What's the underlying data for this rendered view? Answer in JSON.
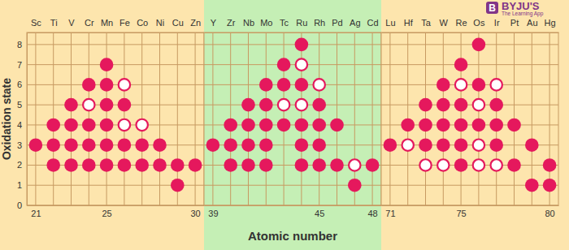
{
  "chart_data": [
    {
      "type": "scatter",
      "y_label": "Oxidation state",
      "grid": true,
      "tick_labels": true,
      "xlim": [
        20.5,
        30.5
      ],
      "xticks": [
        21,
        25,
        30
      ],
      "xticks_top": [
        {
          "value": 21,
          "label": "Sc"
        },
        {
          "value": 22,
          "label": "Ti"
        },
        {
          "value": 23,
          "label": "V"
        },
        {
          "value": 24,
          "label": "Cr"
        },
        {
          "value": 25,
          "label": "Mn"
        },
        {
          "value": 26,
          "label": "Fe"
        },
        {
          "value": 27,
          "label": "Co"
        },
        {
          "value": 28,
          "label": "Ni"
        },
        {
          "value": 29,
          "label": "Cu"
        },
        {
          "value": 30,
          "label": "Zn"
        }
      ],
      "ylim": [
        0,
        8.6
      ],
      "yticks": [
        0,
        1,
        2,
        3,
        4,
        5,
        6,
        7,
        8
      ],
      "series": [
        {
          "marker": "filled-circle",
          "color": "#e5185d",
          "x": [
            21,
            22,
            22,
            22,
            23,
            23,
            23,
            23,
            24,
            24,
            24,
            24,
            25,
            25,
            25,
            25,
            25,
            25,
            26,
            26,
            26,
            27,
            27,
            28,
            28,
            29,
            29,
            30
          ],
          "values": [
            3,
            2,
            3,
            4,
            2,
            3,
            4,
            5,
            2,
            3,
            4,
            6,
            2,
            3,
            4,
            5,
            6,
            7,
            2,
            3,
            5,
            2,
            3,
            2,
            3,
            1,
            2,
            2
          ]
        },
        {
          "marker": "open-circle",
          "color": "#e5185d",
          "x": [
            24,
            26,
            26,
            27
          ],
          "values": [
            5,
            4,
            6,
            4
          ]
        }
      ]
    },
    {
      "type": "scatter",
      "x_label": "Atomic number",
      "grid": true,
      "tick_labels": "x",
      "xlim": [
        38.5,
        48.5
      ],
      "xticks": [
        39,
        45,
        48
      ],
      "xticks_top": [
        {
          "value": 39,
          "label": "Y"
        },
        {
          "value": 40,
          "label": "Zr"
        },
        {
          "value": 41,
          "label": "Nb"
        },
        {
          "value": 42,
          "label": "Mo"
        },
        {
          "value": 43,
          "label": "Tc"
        },
        {
          "value": 44,
          "label": "Ru"
        },
        {
          "value": 45,
          "label": "Rh"
        },
        {
          "value": 46,
          "label": "Pd"
        },
        {
          "value": 47,
          "label": "Ag"
        },
        {
          "value": 48,
          "label": "Cd"
        }
      ],
      "ylim": [
        0,
        8.6
      ],
      "yticks": [
        0,
        1,
        2,
        3,
        4,
        5,
        6,
        7,
        8
      ],
      "series": [
        {
          "marker": "filled-circle",
          "color": "#e5185d",
          "x": [
            39,
            40,
            40,
            40,
            41,
            41,
            41,
            41,
            42,
            42,
            42,
            42,
            42,
            43,
            43,
            43,
            44,
            44,
            44,
            44,
            44,
            45,
            45,
            45,
            45,
            46,
            46,
            47,
            48
          ],
          "values": [
            3,
            2,
            3,
            4,
            2,
            3,
            4,
            5,
            2,
            3,
            4,
            5,
            6,
            4,
            6,
            7,
            2,
            3,
            4,
            6,
            8,
            2,
            3,
            4,
            5,
            2,
            4,
            1,
            2
          ]
        },
        {
          "marker": "open-circle",
          "color": "#e5185d",
          "x": [
            43,
            44,
            44,
            45,
            47
          ],
          "values": [
            5,
            5,
            7,
            6,
            2
          ]
        }
      ]
    },
    {
      "type": "scatter",
      "grid": true,
      "tick_labels": "x",
      "xlim": [
        70.5,
        80.5
      ],
      "xticks": [
        71,
        75,
        80
      ],
      "xticks_top": [
        {
          "value": 71,
          "label": "Lu"
        },
        {
          "value": 72,
          "label": "Hf"
        },
        {
          "value": 73,
          "label": "Ta"
        },
        {
          "value": 74,
          "label": "W"
        },
        {
          "value": 75,
          "label": "Re"
        },
        {
          "value": 76,
          "label": "Os"
        },
        {
          "value": 77,
          "label": "Ir"
        },
        {
          "value": 78,
          "label": "Pt"
        },
        {
          "value": 79,
          "label": "Au"
        },
        {
          "value": 80,
          "label": "Hg"
        }
      ],
      "ylim": [
        0,
        8.6
      ],
      "yticks": [
        0,
        1,
        2,
        3,
        4,
        5,
        6,
        7,
        8
      ],
      "series": [
        {
          "marker": "filled-circle",
          "color": "#e5185d",
          "x": [
            71,
            72,
            73,
            73,
            73,
            74,
            74,
            74,
            74,
            75,
            75,
            75,
            75,
            75,
            76,
            76,
            76,
            77,
            77,
            77,
            78,
            78,
            79,
            79,
            80,
            80
          ],
          "values": [
            3,
            4,
            3,
            4,
            5,
            3,
            4,
            5,
            6,
            2,
            3,
            4,
            5,
            7,
            4,
            6,
            8,
            3,
            4,
            5,
            2,
            4,
            1,
            3,
            1,
            2
          ]
        },
        {
          "marker": "open-circle",
          "color": "#e5185d",
          "x": [
            72,
            73,
            74,
            75,
            76,
            76,
            76,
            77,
            77
          ],
          "values": [
            3,
            2,
            2,
            6,
            2,
            3,
            5,
            2,
            6
          ]
        }
      ]
    }
  ],
  "logo": {
    "icon": "B",
    "text": "BYJU'S",
    "tagline": "The Learning App"
  }
}
